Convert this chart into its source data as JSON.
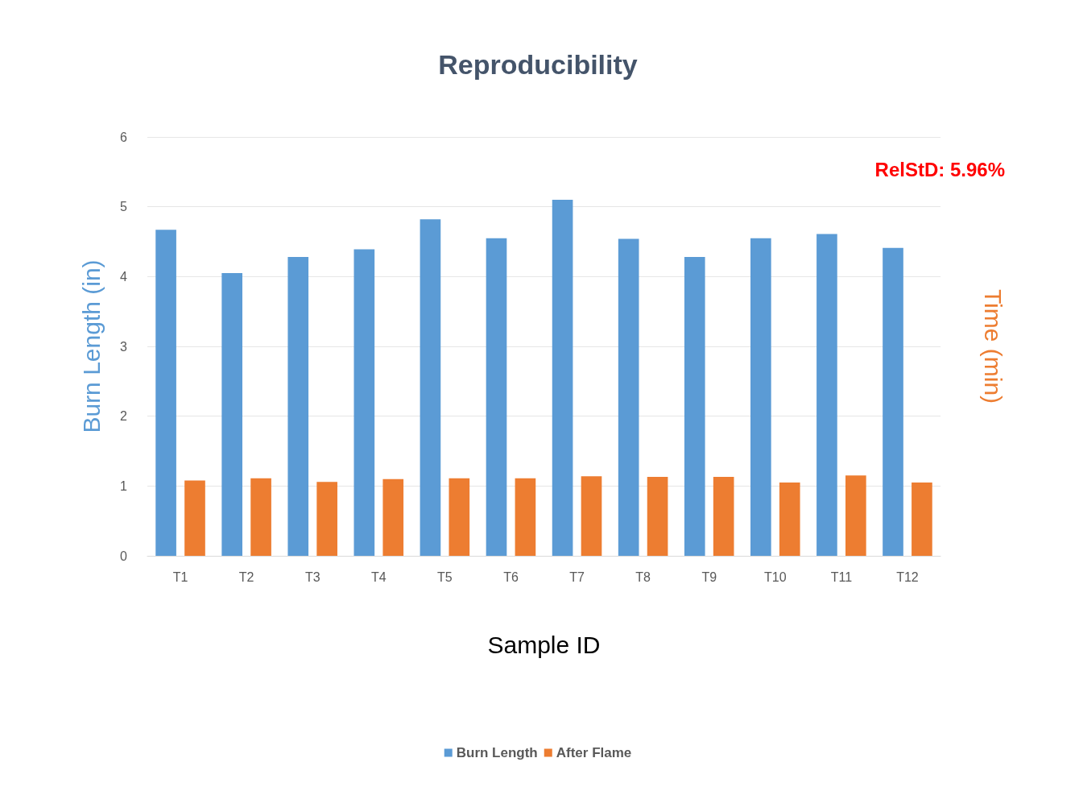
{
  "chart_data": {
    "type": "bar",
    "title": "Reproducibility",
    "xlabel": "Sample ID",
    "ylabel": "Burn Length (in)",
    "y2label": "Time (min)",
    "categories": [
      "T1",
      "T2",
      "T3",
      "T4",
      "T5",
      "T6",
      "T7",
      "T8",
      "T9",
      "T10",
      "T11",
      "T12"
    ],
    "series": [
      {
        "name": "Burn Length",
        "color": "#5b9bd5",
        "values": [
          4.67,
          4.05,
          4.28,
          4.39,
          4.82,
          4.55,
          5.1,
          4.54,
          4.28,
          4.55,
          4.61,
          4.41
        ]
      },
      {
        "name": "After Flame",
        "color": "#ed7d31",
        "values": [
          1.08,
          1.11,
          1.06,
          1.1,
          1.11,
          1.11,
          1.14,
          1.13,
          1.13,
          1.05,
          1.15,
          1.05
        ]
      }
    ],
    "ylim": [
      0,
      6
    ],
    "yticks": [
      0,
      1,
      2,
      3,
      4,
      5,
      6
    ],
    "grid": "y",
    "legend": "bottom",
    "annotations": [
      "RelStD: 5.96%"
    ]
  }
}
